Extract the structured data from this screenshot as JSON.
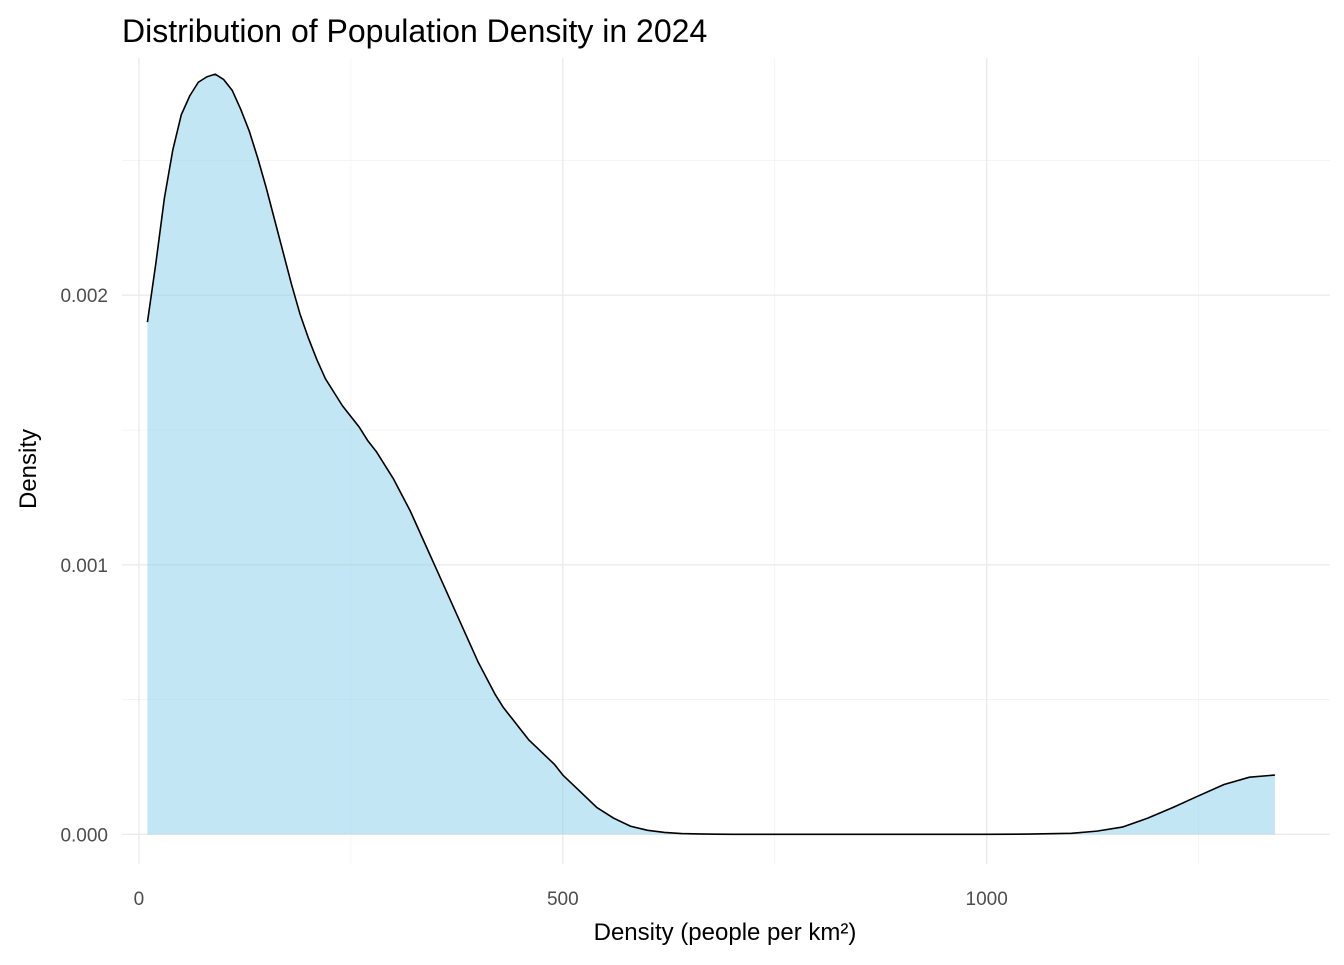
{
  "chart_data": {
    "type": "area",
    "title": "Distribution of Population Density in 2024",
    "xlabel": "Density (people per km²)",
    "ylabel": "Density",
    "xlim": [
      -20,
      1405
    ],
    "ylim": [
      -0.00011,
      0.00288
    ],
    "x_ticks": [
      0,
      500,
      1000
    ],
    "x_tick_labels": [
      "0",
      "500",
      "1000"
    ],
    "x_minor_ticks": [
      250,
      750,
      1250
    ],
    "y_ticks": [
      0.0,
      0.001,
      0.002
    ],
    "y_tick_labels": [
      "0.000",
      "0.001",
      "0.002"
    ],
    "y_minor_ticks": [
      0.0005,
      0.0015,
      0.0025
    ],
    "grid": true,
    "legend": "none",
    "colors": {
      "fill": "#87CEEB",
      "fill_opacity": 0.5,
      "line": "#000000",
      "grid_major": "#ebebeb",
      "grid_minor": "#f3f3f3"
    },
    "series": [
      {
        "x": [
          10,
          20,
          30,
          40,
          50,
          60,
          70,
          80,
          90,
          100,
          110,
          120,
          130,
          140,
          150,
          160,
          170,
          180,
          190,
          200,
          210,
          220,
          230,
          240,
          250,
          260,
          270,
          280,
          290,
          300,
          310,
          320,
          330,
          340,
          350,
          360,
          370,
          380,
          390,
          400,
          410,
          420,
          430,
          440,
          450,
          460,
          470,
          480,
          490,
          500,
          520,
          540,
          560,
          580,
          600,
          620,
          640,
          660,
          680,
          700,
          750,
          800,
          850,
          900,
          950,
          1000,
          1050,
          1100,
          1130,
          1160,
          1190,
          1220,
          1250,
          1280,
          1310,
          1340
        ],
        "y": [
          0.0019,
          0.00212,
          0.00236,
          0.00254,
          0.00267,
          0.00274,
          0.00279,
          0.00281,
          0.00282,
          0.0028,
          0.00276,
          0.00269,
          0.00261,
          0.00251,
          0.0024,
          0.00228,
          0.00216,
          0.00204,
          0.00193,
          0.00184,
          0.00176,
          0.00169,
          0.00164,
          0.00159,
          0.00155,
          0.00151,
          0.00146,
          0.00142,
          0.00137,
          0.00132,
          0.00126,
          0.0012,
          0.00113,
          0.00106,
          0.00099,
          0.00092,
          0.00085,
          0.00078,
          0.00071,
          0.00064,
          0.00058,
          0.00052,
          0.00047,
          0.00043,
          0.00039,
          0.00035,
          0.00032,
          0.00029,
          0.00026,
          0.00022,
          0.00016,
          0.0001,
          6e-05,
          3e-05,
          1.5e-05,
          7e-06,
          3e-06,
          1.5e-06,
          7e-07,
          3e-07,
          1e-07,
          0.0,
          0.0,
          0.0,
          0.0,
          0.0,
          1e-06,
          4e-06,
          1.2e-05,
          2.7e-05,
          6e-05,
          0.0001,
          0.000143,
          0.000185,
          0.000212,
          0.00022
        ]
      }
    ]
  }
}
